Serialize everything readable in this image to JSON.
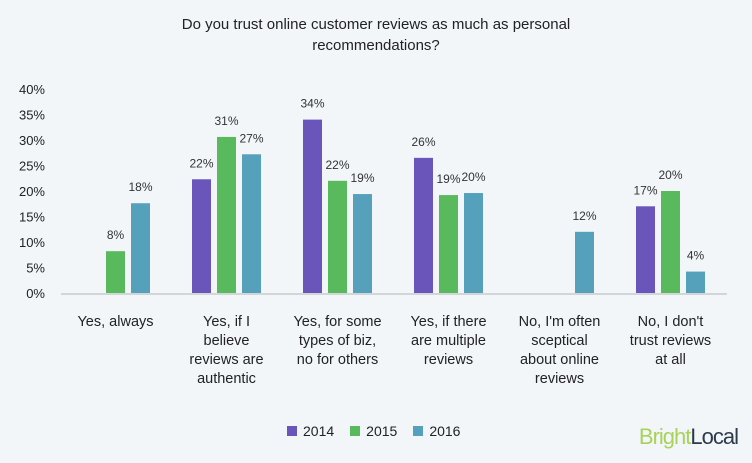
{
  "chart_data": {
    "type": "bar",
    "title": "Do you trust online customer reviews as much as personal recommendations?",
    "title_lines": [
      "Do you trust online customer reviews as much as personal",
      "recommendations?"
    ],
    "categories": [
      [
        "Yes, always"
      ],
      [
        "Yes, if I",
        "believe",
        "reviews are",
        "authentic"
      ],
      [
        "Yes, for some",
        "types of biz,",
        "no for others"
      ],
      [
        "Yes, if there",
        "are multiple",
        "reviews"
      ],
      [
        "No, I'm often",
        "sceptical",
        "about online",
        "reviews"
      ],
      [
        "No, I don't",
        "trust reviews",
        "at all"
      ]
    ],
    "series": [
      {
        "name": "2014",
        "color": "#6a55bb",
        "values": [
          null,
          22,
          34,
          26,
          null,
          17
        ]
      },
      {
        "name": "2015",
        "color": "#58ba5c",
        "values": [
          8,
          31,
          22,
          19,
          null,
          20
        ]
      },
      {
        "name": "2016",
        "color": "#55a0bb",
        "values": [
          18,
          27,
          19,
          20,
          12,
          4
        ]
      }
    ],
    "bar_heights": [
      [
        null,
        22.3,
        34,
        26.5,
        null,
        17
      ],
      [
        8.2,
        30.6,
        22,
        19.2,
        null,
        20
      ],
      [
        17.6,
        27.2,
        19.4,
        19.6,
        12,
        4.2
      ]
    ],
    "yticks": [
      "0%",
      "5%",
      "10%",
      "15%",
      "20%",
      "25%",
      "30%",
      "35%",
      "40%"
    ],
    "ylim": [
      0,
      40
    ],
    "grid": false,
    "legend_position": "bottom"
  },
  "logo": {
    "part1": "Bright",
    "part2": "Local"
  }
}
